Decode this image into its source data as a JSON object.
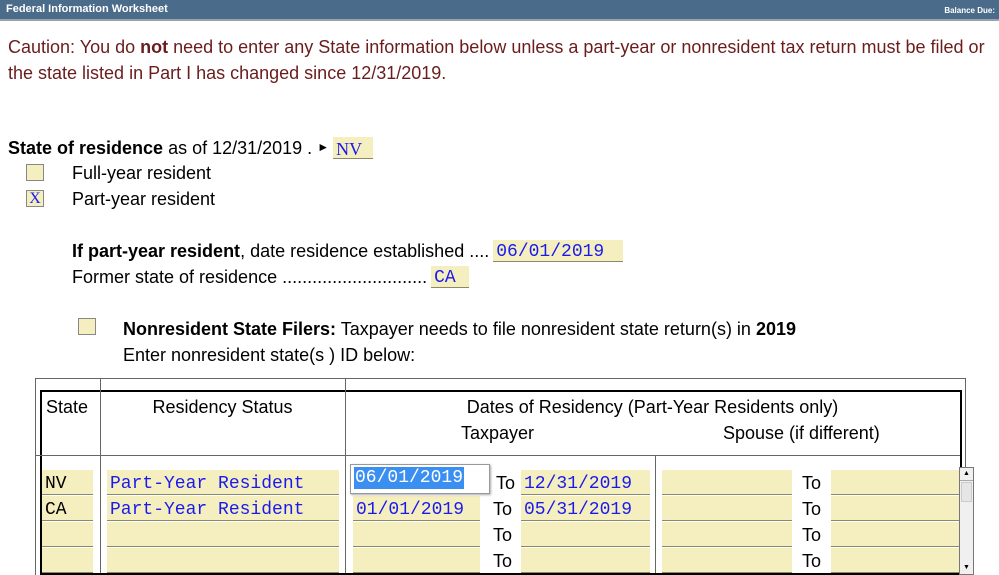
{
  "header": {
    "title": "Federal Information Worksheet",
    "balance_label": "Balance Due:"
  },
  "caution": {
    "prefix": "Caution: You do ",
    "bold": "not",
    "suffix": " need to enter any State information below unless a part-year or nonresident tax return must be filed or the state listed in Part I has changed since 12/31/2019."
  },
  "residence": {
    "label_bold": "State of residence",
    "label_rest": " as of 12/31/2019 .",
    "arrow": "►",
    "state": "NV",
    "full_year": {
      "label": "Full-year resident",
      "checked": ""
    },
    "part_year": {
      "label": "Part-year resident",
      "checked": "X"
    },
    "established_bold": "If part-year resident",
    "established_rest": ", date residence established ....",
    "established_date": "06/01/2019",
    "former_label": "Former state of residence .............................",
    "former_state": "CA"
  },
  "nonresident": {
    "checked": "",
    "bold": "Nonresident State Filers:",
    "text": " Taxpayer needs to file nonresident state return(s) in ",
    "year": "2019",
    "line2": "Enter nonresident state(s ) ID below:"
  },
  "table": {
    "headers": {
      "state": "State",
      "status": "Residency Status",
      "dates": "Dates of Residency (Part-Year Residents only)",
      "taxpayer": "Taxpayer",
      "spouse": "Spouse (if different)"
    },
    "to_label": "To",
    "rows": [
      {
        "state": "NV",
        "status": "Part-Year Resident",
        "tp_from": "06/01/2019",
        "tp_to": "12/31/2019",
        "sp_from": "",
        "sp_to": ""
      },
      {
        "state": "CA",
        "status": "Part-Year Resident",
        "tp_from": "01/01/2019",
        "tp_to": "05/31/2019",
        "sp_from": "",
        "sp_to": ""
      },
      {
        "state": "",
        "status": "",
        "tp_from": "",
        "tp_to": "",
        "sp_from": "",
        "sp_to": ""
      },
      {
        "state": "",
        "status": "",
        "tp_from": "",
        "tp_to": "",
        "sp_from": "",
        "sp_to": ""
      }
    ]
  }
}
